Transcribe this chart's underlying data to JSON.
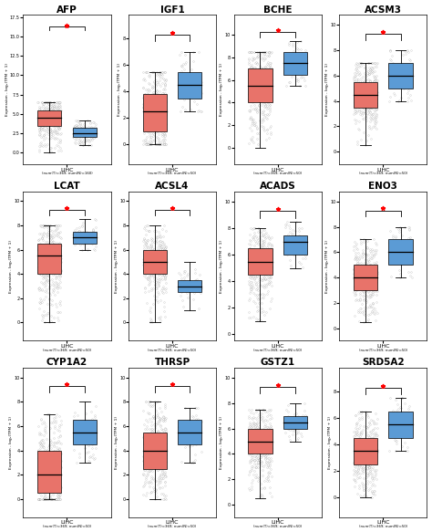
{
  "genes": [
    "AFP",
    "IGF1",
    "BCHE",
    "ACSM3",
    "LCAT",
    "ACSL4",
    "ACADS",
    "ENO3",
    "CYP1A2",
    "THRSP",
    "GSTZ1",
    "SRD5A2"
  ],
  "tumor_color": "#E8736A",
  "normal_color": "#5B9BD5",
  "xlabel": "LIHC",
  "xlabel2_afp": "num(T)=369; num(N)=160",
  "xlabel2": "num(T)=369; num(N)=50",
  "ylabel": "Expression - log₂(TPM + 1)",
  "background_color": "#FFFFFF",
  "boxes": {
    "AFP": {
      "T": {
        "med": 4.5,
        "q1": 3.5,
        "q3": 5.5,
        "whislo": 0.0,
        "whishi": 6.5,
        "fmax": 16
      },
      "N": {
        "med": 2.5,
        "q1": 2.0,
        "q3": 3.2,
        "whislo": 1.0,
        "whishi": 4.2,
        "fmax": 5
      }
    },
    "IGF1": {
      "T": {
        "med": 2.5,
        "q1": 1.0,
        "q3": 3.8,
        "whislo": 0.0,
        "whishi": 5.5,
        "fmax": 8
      },
      "N": {
        "med": 4.5,
        "q1": 3.5,
        "q3": 5.5,
        "whislo": 2.5,
        "whishi": 7.0,
        "fmax": 8
      }
    },
    "BCHE": {
      "T": {
        "med": 5.5,
        "q1": 4.0,
        "q3": 7.0,
        "whislo": 0.0,
        "whishi": 8.5,
        "fmax": 10
      },
      "N": {
        "med": 7.5,
        "q1": 6.5,
        "q3": 8.5,
        "whislo": 5.5,
        "whishi": 9.5,
        "fmax": 10
      }
    },
    "ACSM3": {
      "T": {
        "med": 4.5,
        "q1": 3.5,
        "q3": 5.5,
        "whislo": 0.5,
        "whishi": 7.0,
        "fmax": 8
      },
      "N": {
        "med": 6.0,
        "q1": 5.0,
        "q3": 7.0,
        "whislo": 4.0,
        "whishi": 8.0,
        "fmax": 9
      }
    },
    "LCAT": {
      "T": {
        "med": 5.5,
        "q1": 4.0,
        "q3": 6.5,
        "whislo": 0.0,
        "whishi": 8.0,
        "fmax": 9
      },
      "N": {
        "med": 7.0,
        "q1": 6.5,
        "q3": 7.5,
        "whislo": 6.0,
        "whishi": 8.5,
        "fmax": 9
      }
    },
    "ACSL4": {
      "T": {
        "med": 5.0,
        "q1": 4.0,
        "q3": 6.0,
        "whislo": 0.0,
        "whishi": 8.0,
        "fmax": 9
      },
      "N": {
        "med": 3.0,
        "q1": 2.5,
        "q3": 3.5,
        "whislo": 1.0,
        "whishi": 5.0,
        "fmax": 6
      }
    },
    "ACADS": {
      "T": {
        "med": 5.5,
        "q1": 4.5,
        "q3": 6.5,
        "whislo": 1.0,
        "whishi": 8.0,
        "fmax": 9
      },
      "N": {
        "med": 7.0,
        "q1": 6.0,
        "q3": 7.5,
        "whislo": 5.0,
        "whishi": 8.5,
        "fmax": 9
      }
    },
    "ENO3": {
      "T": {
        "med": 4.0,
        "q1": 3.0,
        "q3": 5.0,
        "whislo": 0.5,
        "whishi": 7.0,
        "fmax": 8
      },
      "N": {
        "med": 6.0,
        "q1": 5.0,
        "q3": 7.0,
        "whislo": 4.0,
        "whishi": 8.0,
        "fmax": 9
      }
    },
    "CYP1A2": {
      "T": {
        "med": 2.0,
        "q1": 0.5,
        "q3": 4.0,
        "whislo": 0.0,
        "whishi": 7.0,
        "fmax": 8
      },
      "N": {
        "med": 5.5,
        "q1": 4.5,
        "q3": 6.5,
        "whislo": 3.0,
        "whishi": 8.0,
        "fmax": 9
      }
    },
    "THRSP": {
      "T": {
        "med": 4.0,
        "q1": 2.5,
        "q3": 5.5,
        "whislo": 0.0,
        "whishi": 8.0,
        "fmax": 9
      },
      "N": {
        "med": 5.5,
        "q1": 4.5,
        "q3": 6.5,
        "whislo": 3.0,
        "whishi": 7.5,
        "fmax": 8
      }
    },
    "GSTZ1": {
      "T": {
        "med": 5.0,
        "q1": 4.0,
        "q3": 6.0,
        "whislo": 0.5,
        "whishi": 7.5,
        "fmax": 9
      },
      "N": {
        "med": 6.5,
        "q1": 6.0,
        "q3": 7.0,
        "whislo": 5.0,
        "whishi": 8.0,
        "fmax": 9
      }
    },
    "SRD5A2": {
      "T": {
        "med": 3.5,
        "q1": 2.5,
        "q3": 4.5,
        "whislo": 0.0,
        "whishi": 6.5,
        "fmax": 8
      },
      "N": {
        "med": 5.5,
        "q1": 4.5,
        "q3": 6.5,
        "whislo": 3.5,
        "whishi": 7.5,
        "fmax": 8
      }
    }
  }
}
